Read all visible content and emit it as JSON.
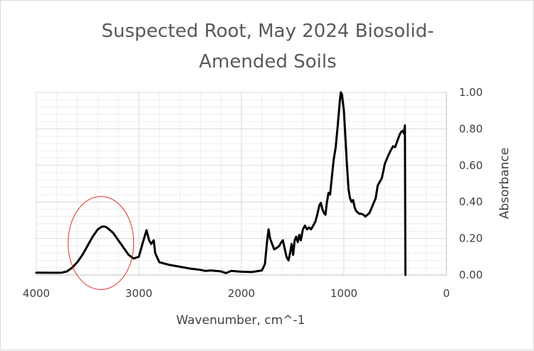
{
  "chart_data": {
    "type": "line",
    "title_lines": [
      "Suspected Root, May 2024 Biosolid-",
      "Amended Soils"
    ],
    "xlabel": "Wavenumber, cm^-1",
    "ylabel": "Absorbance",
    "xlim": [
      4000,
      0
    ],
    "ylim": [
      0,
      1.0
    ],
    "x_reversed": true,
    "y_axis_side": "right",
    "grid": "major and minor",
    "x_ticks": [
      {
        "value": 4000,
        "label": "4000"
      },
      {
        "value": 3000,
        "label": "3000"
      },
      {
        "value": 2000,
        "label": "2000"
      },
      {
        "value": 1000,
        "label": "1000"
      },
      {
        "value": 0,
        "label": "0"
      }
    ],
    "y_ticks": [
      {
        "value": 0.0,
        "label": "0.00"
      },
      {
        "value": 0.2,
        "label": "0.20"
      },
      {
        "value": 0.4,
        "label": "0.40"
      },
      {
        "value": 0.6,
        "label": "0.60"
      },
      {
        "value": 0.8,
        "label": "0.80"
      },
      {
        "value": 1.0,
        "label": "1.00"
      }
    ],
    "series": [
      {
        "color": "#000000",
        "points": [
          [
            4000,
            0.013
          ],
          [
            3850,
            0.012
          ],
          [
            3750,
            0.013
          ],
          [
            3700,
            0.02
          ],
          [
            3650,
            0.04
          ],
          [
            3600,
            0.07
          ],
          [
            3550,
            0.11
          ],
          [
            3500,
            0.16
          ],
          [
            3450,
            0.21
          ],
          [
            3400,
            0.25
          ],
          [
            3360,
            0.265
          ],
          [
            3330,
            0.265
          ],
          [
            3300,
            0.255
          ],
          [
            3250,
            0.23
          ],
          [
            3200,
            0.19
          ],
          [
            3150,
            0.15
          ],
          [
            3100,
            0.11
          ],
          [
            3050,
            0.09
          ],
          [
            3000,
            0.1
          ],
          [
            2960,
            0.18
          ],
          [
            2925,
            0.245
          ],
          [
            2900,
            0.19
          ],
          [
            2880,
            0.17
          ],
          [
            2855,
            0.19
          ],
          [
            2840,
            0.12
          ],
          [
            2800,
            0.07
          ],
          [
            2700,
            0.055
          ],
          [
            2600,
            0.045
          ],
          [
            2500,
            0.035
          ],
          [
            2400,
            0.028
          ],
          [
            2350,
            0.022
          ],
          [
            2300,
            0.025
          ],
          [
            2250,
            0.022
          ],
          [
            2200,
            0.02
          ],
          [
            2150,
            0.01
          ],
          [
            2100,
            0.022
          ],
          [
            2000,
            0.018
          ],
          [
            1900,
            0.016
          ],
          [
            1800,
            0.025
          ],
          [
            1770,
            0.06
          ],
          [
            1750,
            0.18
          ],
          [
            1735,
            0.25
          ],
          [
            1720,
            0.2
          ],
          [
            1700,
            0.17
          ],
          [
            1680,
            0.14
          ],
          [
            1650,
            0.15
          ],
          [
            1630,
            0.16
          ],
          [
            1610,
            0.18
          ],
          [
            1595,
            0.19
          ],
          [
            1580,
            0.15
          ],
          [
            1560,
            0.1
          ],
          [
            1540,
            0.08
          ],
          [
            1525,
            0.12
          ],
          [
            1510,
            0.17
          ],
          [
            1495,
            0.11
          ],
          [
            1480,
            0.19
          ],
          [
            1465,
            0.21
          ],
          [
            1450,
            0.18
          ],
          [
            1435,
            0.22
          ],
          [
            1420,
            0.19
          ],
          [
            1400,
            0.25
          ],
          [
            1380,
            0.27
          ],
          [
            1360,
            0.25
          ],
          [
            1340,
            0.26
          ],
          [
            1320,
            0.25
          ],
          [
            1300,
            0.27
          ],
          [
            1280,
            0.29
          ],
          [
            1260,
            0.33
          ],
          [
            1240,
            0.38
          ],
          [
            1225,
            0.395
          ],
          [
            1210,
            0.36
          ],
          [
            1195,
            0.34
          ],
          [
            1180,
            0.33
          ],
          [
            1165,
            0.4
          ],
          [
            1150,
            0.45
          ],
          [
            1135,
            0.44
          ],
          [
            1120,
            0.52
          ],
          [
            1100,
            0.63
          ],
          [
            1080,
            0.7
          ],
          [
            1060,
            0.82
          ],
          [
            1040,
            0.95
          ],
          [
            1030,
            1.0
          ],
          [
            1020,
            0.99
          ],
          [
            1000,
            0.9
          ],
          [
            985,
            0.75
          ],
          [
            970,
            0.6
          ],
          [
            955,
            0.47
          ],
          [
            940,
            0.42
          ],
          [
            925,
            0.4
          ],
          [
            910,
            0.41
          ],
          [
            895,
            0.37
          ],
          [
            880,
            0.35
          ],
          [
            850,
            0.335
          ],
          [
            830,
            0.335
          ],
          [
            810,
            0.33
          ],
          [
            790,
            0.32
          ],
          [
            770,
            0.33
          ],
          [
            750,
            0.34
          ],
          [
            720,
            0.38
          ],
          [
            690,
            0.42
          ],
          [
            670,
            0.49
          ],
          [
            650,
            0.51
          ],
          [
            630,
            0.53
          ],
          [
            600,
            0.61
          ],
          [
            570,
            0.65
          ],
          [
            545,
            0.68
          ],
          [
            520,
            0.705
          ],
          [
            500,
            0.7
          ],
          [
            475,
            0.74
          ],
          [
            455,
            0.77
          ],
          [
            440,
            0.785
          ],
          [
            425,
            0.79
          ],
          [
            415,
            0.775
          ],
          [
            405,
            0.82
          ],
          [
            400,
            0.0
          ]
        ]
      }
    ],
    "annotations": [
      {
        "shape": "ellipse",
        "color": "#e0302a",
        "center": [
          3370,
          0.175
        ],
        "radius_x": 320,
        "radius_y": 0.255
      }
    ]
  }
}
